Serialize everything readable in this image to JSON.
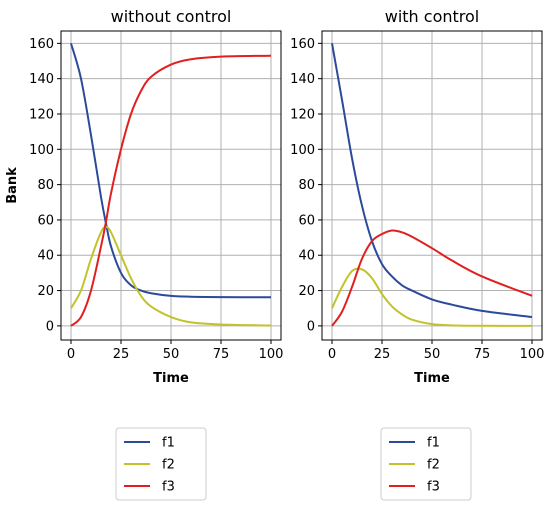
{
  "chart_data": [
    {
      "type": "line",
      "title": "without control",
      "xlabel": "Time",
      "ylabel": "Bank",
      "xlim": [
        -5,
        105
      ],
      "ylim": [
        -8,
        167
      ],
      "xticks": [
        0,
        25,
        50,
        75,
        100
      ],
      "yticks": [
        0,
        20,
        40,
        60,
        80,
        100,
        120,
        140,
        160
      ],
      "grid": true,
      "legend_position": "below",
      "x": [
        0,
        5,
        10,
        15,
        17.5,
        20,
        25,
        30,
        35,
        40,
        50,
        60,
        75,
        100
      ],
      "series": [
        {
          "name": "f1",
          "color": "#2b4a9a",
          "values": [
            160,
            140,
            108,
            73,
            58,
            45,
            30,
            23,
            20,
            18.5,
            17,
            16.5,
            16.3,
            16.2
          ]
        },
        {
          "name": "f2",
          "color": "#c2c22a",
          "values": [
            10,
            20,
            38,
            53,
            56,
            53,
            40,
            27,
            17,
            11,
            5,
            2,
            0.8,
            0.2
          ]
        },
        {
          "name": "f3",
          "color": "#e02020",
          "values": [
            0,
            5,
            20,
            45,
            59,
            75,
            100,
            120,
            133,
            141,
            148,
            151,
            152.5,
            153
          ]
        }
      ]
    },
    {
      "type": "line",
      "title": "with control",
      "xlabel": "Time",
      "ylabel": "",
      "xlim": [
        -5,
        105
      ],
      "ylim": [
        -8,
        167
      ],
      "xticks": [
        0,
        25,
        50,
        75,
        100
      ],
      "yticks": [
        0,
        20,
        40,
        60,
        80,
        100,
        120,
        140,
        160
      ],
      "grid": true,
      "legend_position": "below",
      "x": [
        0,
        5,
        10,
        15,
        20,
        25,
        30,
        35,
        40,
        50,
        60,
        75,
        100
      ],
      "series": [
        {
          "name": "f1",
          "color": "#2b4a9a",
          "values": [
            160,
            128,
            95,
            68,
            48,
            35,
            28,
            23,
            20,
            15,
            12,
            8.5,
            5
          ]
        },
        {
          "name": "f2",
          "color": "#c2c22a",
          "values": [
            10,
            22,
            31,
            32,
            27,
            18,
            11,
            6.5,
            3.5,
            1,
            0.3,
            0.05,
            0
          ]
        },
        {
          "name": "f3",
          "color": "#e02020",
          "values": [
            0,
            8,
            22,
            38,
            48,
            52,
            54,
            53,
            50.5,
            44,
            37,
            28,
            17
          ]
        }
      ]
    }
  ]
}
